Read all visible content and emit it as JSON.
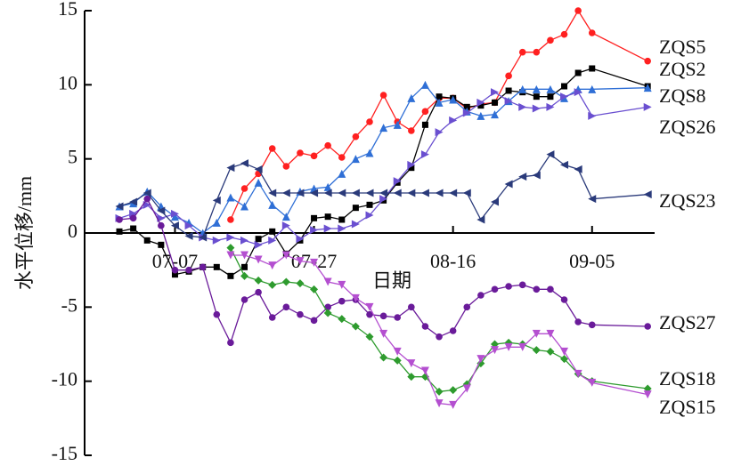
{
  "chart_data": {
    "type": "line",
    "x_label": "日期",
    "y_label": "水平位移/mm",
    "x": [
      "06-29",
      "07-01",
      "07-03",
      "07-05",
      "07-07",
      "07-09",
      "07-11",
      "07-13",
      "07-15",
      "07-17",
      "07-19",
      "07-21",
      "07-23",
      "07-25",
      "07-27",
      "07-29",
      "07-31",
      "08-02",
      "08-04",
      "08-06",
      "08-08",
      "08-10",
      "08-12",
      "08-14",
      "08-16",
      "08-18",
      "08-20",
      "08-22",
      "08-24",
      "08-26",
      "08-28",
      "08-30",
      "09-01",
      "09-03",
      "09-05",
      "09-13"
    ],
    "xlim": [
      "06-24",
      "09-14"
    ],
    "xticks": [
      "07-07",
      "07-27",
      "08-16",
      "09-05"
    ],
    "ylim": [
      -15,
      15
    ],
    "yticks": [
      -15,
      -10,
      -5,
      0,
      5,
      10,
      15
    ],
    "series": [
      {
        "name": "ZQS5",
        "color": "#ff2020",
        "marker": "circle",
        "values": [
          null,
          null,
          null,
          null,
          null,
          null,
          null,
          null,
          0.9,
          3,
          4,
          5.7,
          4.5,
          5.4,
          5.2,
          5.9,
          5.1,
          6.5,
          7.5,
          9.3,
          7.5,
          6.9,
          8.2,
          9.1,
          9.1,
          8.4,
          8.7,
          8.8,
          10.6,
          12.2,
          12.2,
          13,
          13.4,
          15,
          13.5,
          11.6
        ]
      },
      {
        "name": "ZQS2",
        "color": "#000000",
        "marker": "square",
        "values": [
          0.1,
          0.3,
          -0.5,
          -0.8,
          -2.8,
          -2.6,
          -2.3,
          -2.3,
          -2.9,
          -2.3,
          -0.4,
          0.1,
          -1.4,
          -0.5,
          1,
          1.1,
          0.9,
          1.7,
          1.9,
          2.2,
          3.4,
          4.4,
          7.3,
          9.2,
          9.1,
          8.5,
          8.6,
          8.8,
          9.6,
          9.5,
          9.2,
          9.2,
          9.9,
          10.8,
          11.1,
          9.9
        ]
      },
      {
        "name": "ZQS8",
        "color": "#2f6fd6",
        "marker": "up",
        "values": [
          1.8,
          2,
          2.8,
          1.8,
          1.1,
          0.7,
          0,
          0.7,
          2.4,
          1.8,
          3.4,
          1.9,
          1.1,
          2.8,
          3,
          3.1,
          4,
          5,
          5.4,
          7.1,
          7.3,
          9.1,
          10,
          8.8,
          9,
          8.2,
          7.9,
          8,
          8.9,
          9.7,
          9.7,
          9.7,
          9.1,
          9.7,
          9.7,
          9.8
        ]
      },
      {
        "name": "ZQS26",
        "color": "#6a4fd0",
        "marker": "right",
        "values": [
          1,
          1.3,
          1.9,
          1,
          1.3,
          0.5,
          -0.3,
          -0.5,
          -0.3,
          -0.5,
          -0.8,
          -0.5,
          0.5,
          -0.4,
          0.2,
          0.3,
          0.3,
          0.6,
          1.2,
          2.3,
          3.5,
          4.6,
          5.3,
          6.8,
          7.6,
          8.1,
          8.8,
          9.5,
          8.9,
          8.5,
          8.4,
          8.5,
          9.2,
          9.5,
          7.9,
          8.5
        ]
      },
      {
        "name": "ZQS23",
        "color": "#2a3a7a",
        "marker": "left",
        "values": [
          1.8,
          2.1,
          2.7,
          1.5,
          0.5,
          -0.2,
          -0.3,
          2.2,
          4.4,
          4.7,
          4.3,
          2.7,
          2.7,
          2.7,
          2.7,
          2.7,
          2.7,
          2.7,
          2.7,
          2.7,
          2.7,
          2.7,
          2.7,
          2.7,
          2.7,
          2.7,
          0.9,
          2.1,
          3.3,
          3.8,
          3.9,
          5.3,
          4.6,
          4.3,
          2.3,
          2.6
        ]
      },
      {
        "name": "ZQS27",
        "color": "#6a1b9a",
        "marker": "circle",
        "values": [
          0.9,
          1,
          2.3,
          0.5,
          -2.5,
          -2.5,
          -2.3,
          -5.5,
          -7.4,
          -4.5,
          -4,
          -5.7,
          -5,
          -5.5,
          -5.9,
          -5,
          -4.6,
          -4.5,
          -5.5,
          -5.6,
          -5.7,
          -5,
          -6.3,
          -7,
          -6.6,
          -5,
          -4.2,
          -3.8,
          -3.6,
          -3.5,
          -3.8,
          -3.8,
          -4.5,
          -6,
          -6.2,
          -6.3
        ]
      },
      {
        "name": "ZQS18",
        "color": "#2e9b2e",
        "marker": "diamond",
        "values": [
          null,
          null,
          null,
          null,
          null,
          null,
          null,
          null,
          -1,
          -2.9,
          -3.2,
          -3.5,
          -3.3,
          -3.4,
          -3.8,
          -5.4,
          -5.8,
          -6.3,
          -7,
          -8.4,
          -8.6,
          -9.7,
          -9.7,
          -10.7,
          -10.6,
          -10.2,
          -8.8,
          -7.5,
          -7.4,
          -7.5,
          -7.9,
          -8,
          -8.5,
          -9.5,
          -10,
          -10.5
        ]
      },
      {
        "name": "ZQS15",
        "color": "#b44fd0",
        "marker": "down",
        "values": [
          null,
          null,
          null,
          null,
          null,
          null,
          null,
          null,
          -1.5,
          -1.5,
          -1.8,
          -2.2,
          -1.5,
          -1.9,
          -2,
          -3.3,
          -3.5,
          -4.4,
          -5,
          -6.8,
          -8,
          -8.8,
          -9.3,
          -11.5,
          -11.6,
          -10.5,
          -8.5,
          -7.9,
          -7.7,
          -7.7,
          -6.8,
          -6.8,
          -8,
          -9.5,
          -10.1,
          -10.9
        ]
      }
    ]
  }
}
